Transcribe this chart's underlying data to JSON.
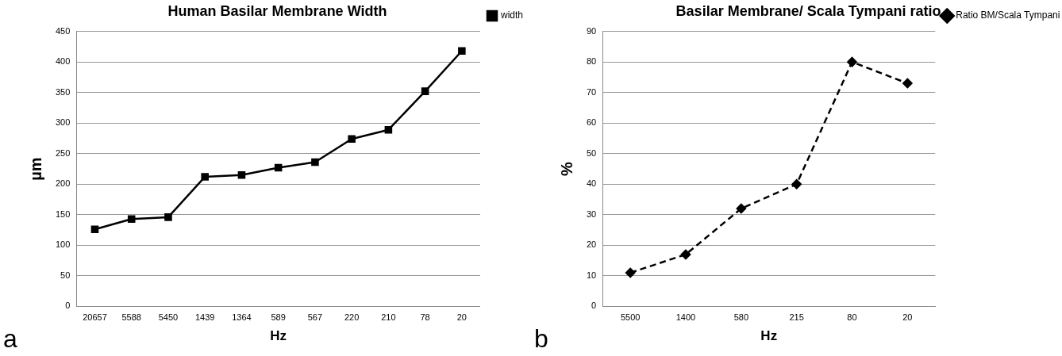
{
  "chart_data": [
    {
      "type": "line",
      "title": "Human Basilar Membrane Width",
      "xlabel": "Hz",
      "ylabel": "µm",
      "categories": [
        "20657",
        "5588",
        "5450",
        "1439",
        "1364",
        "589",
        "567",
        "220",
        "210",
        "78",
        "20"
      ],
      "series": [
        {
          "name": "width",
          "color": "#000000",
          "values": [
            126,
            143,
            146,
            212,
            215,
            227,
            236,
            274,
            289,
            352,
            418
          ]
        }
      ],
      "ylim": [
        0,
        450
      ],
      "yticks": [
        0,
        50,
        100,
        150,
        200,
        250,
        300,
        350,
        400,
        450
      ],
      "grid": "y",
      "legend": "top right",
      "marker": "square",
      "line_style": "solid",
      "annotations": [
        "a"
      ]
    },
    {
      "type": "line",
      "title": "Basilar Membrane/ Scala Tympani ratio",
      "xlabel": "Hz",
      "ylabel": "%",
      "categories": [
        "5500",
        "1400",
        "580",
        "215",
        "80",
        "20"
      ],
      "series": [
        {
          "name": "Ratio BM/Scala Tympani",
          "color": "#000000",
          "values": [
            11,
            17,
            32,
            40,
            80,
            73
          ]
        }
      ],
      "ylim": [
        0,
        90
      ],
      "yticks": [
        0,
        10,
        20,
        30,
        40,
        50,
        60,
        70,
        80,
        90
      ],
      "grid": "y",
      "legend": "top right",
      "marker": "diamond",
      "line_style": "dashed",
      "annotations": [
        "b"
      ]
    }
  ]
}
